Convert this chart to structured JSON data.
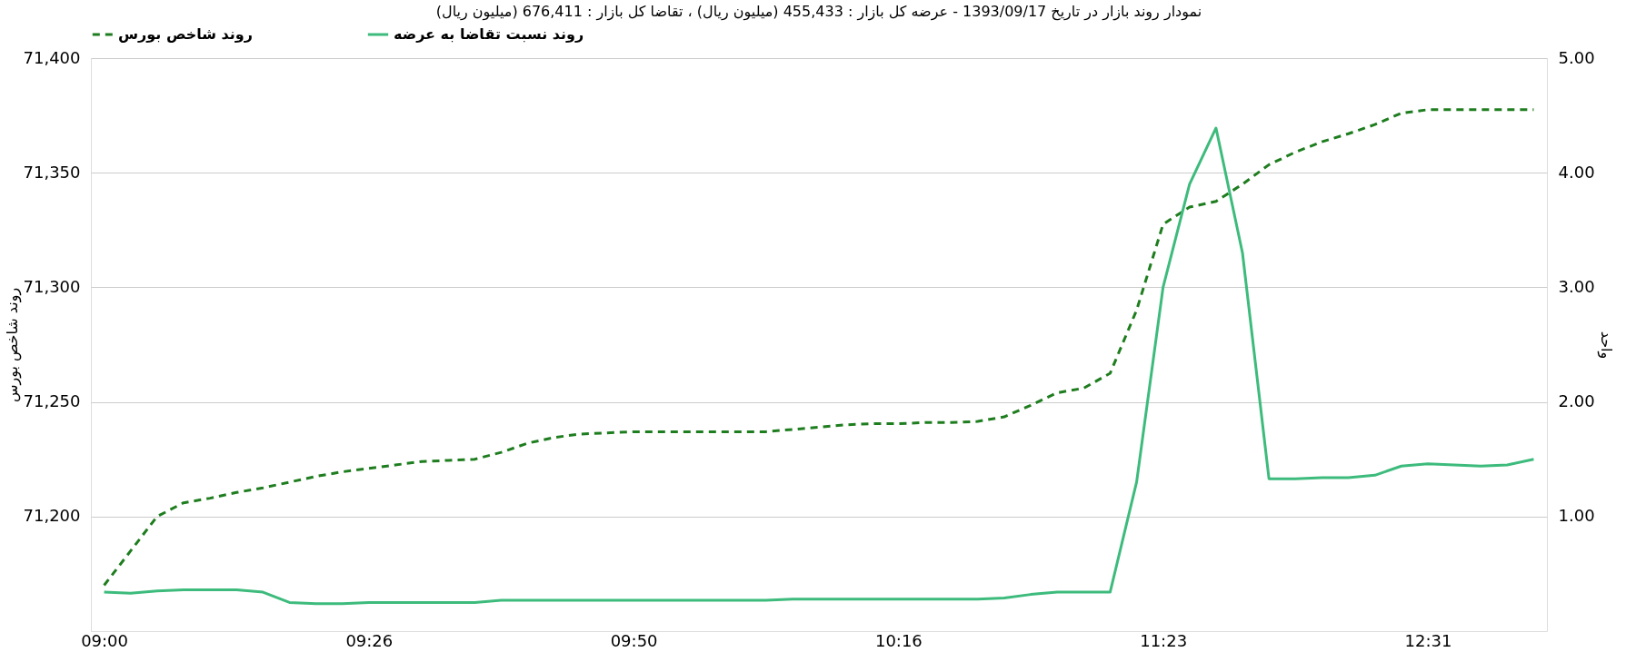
{
  "chart_data": {
    "type": "line",
    "title": "نمودار روند بازار در تاریخ 1393/09/17 - عرضه کل بازار : 455,433 (میلیون ریال) ، تقاضا کل بازار : 676,411 (میلیون ریال)",
    "ylabel": "روند شاخص بورس",
    "y2label": "واحد",
    "categories": [
      "09:00",
      null,
      null,
      null,
      null,
      null,
      null,
      null,
      null,
      null,
      "09:26",
      null,
      null,
      null,
      null,
      null,
      null,
      null,
      null,
      null,
      "09:50",
      null,
      null,
      null,
      null,
      null,
      null,
      null,
      null,
      null,
      "10:16",
      null,
      null,
      null,
      null,
      null,
      null,
      null,
      null,
      null,
      "11:23",
      null,
      null,
      null,
      null,
      null,
      null,
      null,
      null,
      null,
      "12:31",
      null,
      null,
      null,
      null
    ],
    "series": [
      {
        "name": "روند شاخص بورس",
        "color": "#1e7d1e",
        "line_style": "dashed",
        "values": [
          71170,
          71185,
          71200,
          71206,
          71208,
          71210.5,
          71212.5,
          71215,
          71217.5,
          71219.5,
          71221,
          71222.5,
          71224,
          71224.5,
          71225,
          71228,
          71232,
          71234.5,
          71236,
          71236.5,
          71237,
          71237,
          71237,
          71237,
          71237,
          71237,
          71238,
          71239,
          71240,
          71240.5,
          71240.5,
          71241,
          71241,
          71241.5,
          71243.5,
          71248.5,
          71254,
          71256,
          71262.5,
          71290,
          71327.5,
          71335,
          71337.5,
          71345,
          71353.5,
          71359,
          71363.5,
          71367,
          71371,
          71376,
          71377.5,
          71377.5,
          71377.5,
          71377.5,
          71377.5
        ]
      },
      {
        "name": "روند نسبت تقاضا به عرضه",
        "color": "#3dbb7c",
        "line_style": "solid",
        "axis": "y2",
        "values": [
          0.34,
          0.33,
          0.35,
          0.36,
          0.36,
          0.36,
          0.34,
          0.25,
          0.24,
          0.24,
          0.25,
          0.25,
          0.25,
          0.25,
          0.25,
          0.27,
          0.27,
          0.27,
          0.27,
          0.27,
          0.27,
          0.27,
          0.27,
          0.27,
          0.27,
          0.27,
          0.28,
          0.28,
          0.28,
          0.28,
          0.28,
          0.28,
          0.28,
          0.28,
          0.29,
          0.32,
          0.34,
          0.34,
          0.34,
          1.3,
          3.0,
          3.9,
          4.39,
          3.3,
          1.33,
          1.33,
          1.34,
          1.34,
          1.36,
          1.44,
          1.46,
          1.45,
          1.44,
          1.45,
          1.5
        ]
      }
    ],
    "ylim": [
      71150,
      71400
    ],
    "yticks": [
      {
        "value": 71200,
        "label": "71,200"
      },
      {
        "value": 71250,
        "label": "71,250"
      },
      {
        "value": 71300,
        "label": "71,300"
      },
      {
        "value": 71350,
        "label": "71,350"
      },
      {
        "value": 71400,
        "label": "71,400"
      }
    ],
    "y2lim": [
      0,
      5
    ],
    "y2ticks": [
      {
        "value": 1,
        "label": "1.00"
      },
      {
        "value": 2,
        "label": "2.00"
      },
      {
        "value": 3,
        "label": "3.00"
      },
      {
        "value": 4,
        "label": "4.00"
      },
      {
        "value": 5,
        "label": "5.00"
      }
    ],
    "grid": "y",
    "legend": "top",
    "marker": "none"
  }
}
